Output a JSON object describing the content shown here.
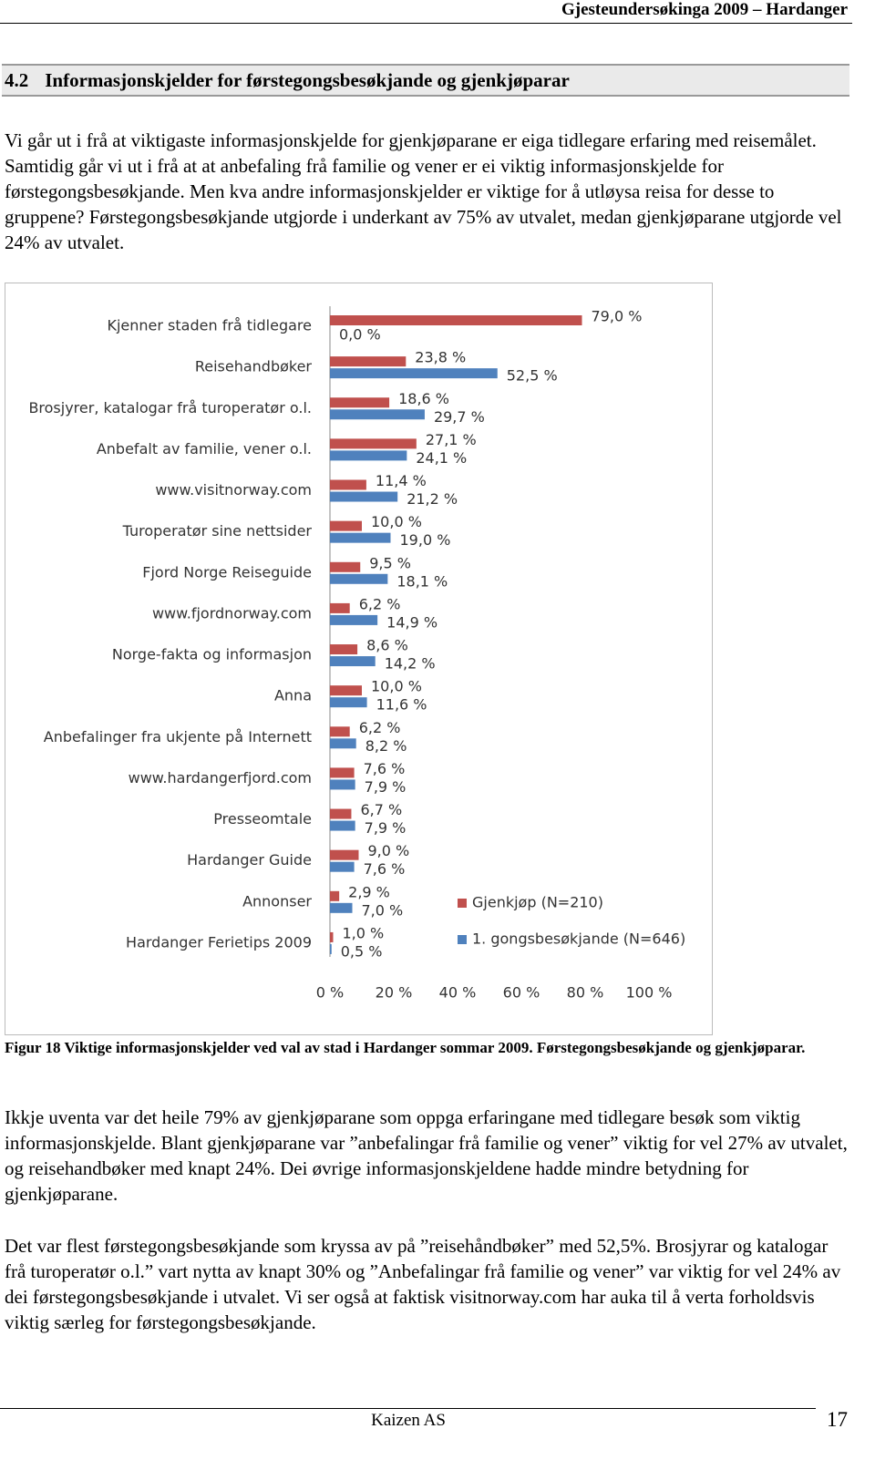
{
  "header": {
    "title": "Gjesteundersøkinga 2009 – Hardanger"
  },
  "section": {
    "number": "4.2",
    "title": "Informasjonskjelder for førstegongsbesøkjande og gjenkjøparar"
  },
  "paragraphs": [
    "Vi går ut i frå at viktigaste informasjonskjelde for gjenkjøparane er eiga tidlegare erfaring med reisemålet. Samtidig går vi ut i frå at at anbefaling frå familie og vener er ei viktig informasjonskjelde for førstegongsbesøkjande. Men kva andre informasjonskjelder er viktige for å utløysa reisa for desse to gruppene? Førstegongsbesøkjande utgjorde i underkant av 75% av utvalet, medan gjenkjøparane utgjorde vel 24% av utvalet.",
    "Ikkje uventa var det heile 79% av gjenkjøparane som oppga erfaringane med tidlegare besøk som viktig informasjonskjelde. Blant gjenkjøparane var ”anbefalingar frå familie og vener” viktig for vel 27% av utvalet, og reisehandbøker med knapt 24%. Dei øvrige informasjonskjeldene hadde mindre betydning for gjenkjøparane.",
    "Det var flest førstegongsbesøkjande som kryssa av på ”reisehåndbøker” med 52,5%. Brosjyrar og katalogar frå turoperatør o.l.” vart nytta av knapt 30% og ”Anbefalingar frå familie og vener” var viktig for vel 24% av dei førstegongsbesøkjande i utvalet. Vi ser også at faktisk visitnorway.com har auka til å verta forholdsvis viktig særleg for førstegongsbesøkjande."
  ],
  "chart_data": {
    "type": "hbar",
    "categories": [
      "Kjenner staden frå tidlegare",
      "Reisehandbøker",
      "Brosjyrer, katalogar frå turoperatør o.l.",
      "Anbefalt av familie, vener o.l.",
      "www.visitnorway.com",
      "Turoperatør sine nettsider",
      "Fjord Norge Reiseguide",
      "www.fjordnorway.com",
      "Norge-fakta og informasjon",
      "Anna",
      "Anbefalinger fra ukjente på Internett",
      "www.hardangerfjord.com",
      "Presseomtale",
      "Hardanger Guide",
      "Annonser",
      "Hardanger Ferietips 2009"
    ],
    "series": [
      {
        "name": "Gjenkjøp (N=210)",
        "color": "#c0504d",
        "values": [
          79.0,
          23.8,
          18.6,
          27.1,
          11.4,
          10.0,
          9.5,
          6.2,
          8.6,
          10.0,
          6.2,
          7.6,
          6.7,
          9.0,
          2.9,
          1.0
        ],
        "value_labels": [
          "79,0 %",
          "23,8 %",
          "18,6 %",
          "27,1 %",
          "11,4 %",
          "10,0 %",
          "9,5 %",
          "6,2 %",
          "8,6 %",
          "10,0 %",
          "6,2 %",
          "7,6 %",
          "6,7 %",
          "9,0 %",
          "2,9 %",
          "1,0 %"
        ]
      },
      {
        "name": "1. gongsbesøkjande (N=646)",
        "color": "#4f81bd",
        "values": [
          0.0,
          52.5,
          29.7,
          24.1,
          21.2,
          19.0,
          18.1,
          14.9,
          14.2,
          11.6,
          8.2,
          7.9,
          7.9,
          7.6,
          7.0,
          0.5
        ],
        "value_labels": [
          "0,0 %",
          "52,5 %",
          "29,7 %",
          "24,1 %",
          "21,2 %",
          "19,0 %",
          "18,1 %",
          "14,9 %",
          "14,2 %",
          "11,6 %",
          "8,2 %",
          "7,9 %",
          "7,9 %",
          "7,6 %",
          "7,0 %",
          "0,5 %"
        ]
      }
    ],
    "xlim": [
      0,
      100
    ],
    "xticks": [
      {
        "value": 0,
        "label": "0 %"
      },
      {
        "value": 20,
        "label": "20 %"
      },
      {
        "value": 40,
        "label": "40 %"
      },
      {
        "value": 60,
        "label": "60 %"
      },
      {
        "value": 80,
        "label": "80 %"
      },
      {
        "value": 100,
        "label": "100 %"
      }
    ],
    "legend": "right"
  },
  "caption": "Figur 18 Viktige informasjonskjelder ved val av stad i Hardanger sommar 2009. Førstegongsbesøkjande og gjenkjøparar.",
  "footer": {
    "company": "Kaizen AS",
    "page_number": 17
  }
}
